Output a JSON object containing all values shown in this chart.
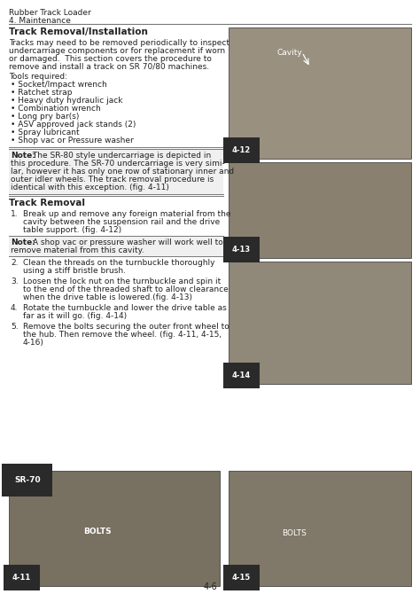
{
  "page_bg": "#ffffff",
  "header_line1": "Rubber Track Loader",
  "header_line2": "4. Maintenance",
  "section_title": "Track Removal/Installation",
  "intro_text": "Tracks may need to be removed periodically to inspect\nundercarriage components or for replacement if worn\nor damaged.  This section covers the procedure to\nremove and install a track on SR 70/80 machines.",
  "tools_header": "Tools required:",
  "tools_list": [
    "• Socket/Impact wrench",
    "• Ratchet strap",
    "• Heavy duty hydraulic jack",
    "• Combination wrench",
    "• Long pry bar(s)",
    "• ASV approved jack stands (2)",
    "• Spray lubricant",
    "• Shop vac or Pressure washer"
  ],
  "note1_bold": "Note:",
  "note1_text": " The SR-80 style undercarriage is depicted in\nthis procedure. The SR-70 undercarriage is very simi-\nlar, however it has only one row of stationary inner and\nouter idler wheels. The track removal procedure is\nidentical with this exception. (fig. 4-11)",
  "track_removal_title": "Track Removal",
  "step1": "Break up and remove any foreign material from the\ncavity between the suspension rail and the drive\ntable support. (fig. 4-12)",
  "note2_bold": "Note:",
  "note2_text": " A shop vac or pressure washer will work well to\nremove material from this cavity.",
  "steps_2_5": [
    "Clean the threads on the turnbuckle thoroughly\nusing a stiff bristle brush.",
    "Loosen the lock nut on the turnbuckle and spin it\nto the end of the threaded shaft to allow clearance\nwhen the drive table is lowered.(fig. 4-13)",
    "Rotate the turnbuckle and lower the drive table as\nfar as it will go. (fig. 4-14)",
    "Remove the bolts securing the outer front wheel to\nthe hub. Then remove the wheel. (fig. 4-11, 4-15,\n4-16)"
  ],
  "fig12_label": "4-12",
  "fig13_label": "4-13",
  "fig14_label": "4-14",
  "fig15_label": "4-15",
  "fig11_label": "4-11",
  "cavity_label": "Cavity",
  "bolts_label": "BOLTS",
  "sr70_label": "SR-70",
  "page_num": "4-6",
  "text_color": "#222222",
  "img_color_12": "#9a9080",
  "img_color_13": "#8a8070",
  "img_color_14": "#908878",
  "img_color_15": "#807868",
  "img_color_11": "#787060",
  "line_color": "#777777",
  "note_bg": "#f0f0f0",
  "figlabel_bg": "#2a2a2a",
  "figlabel_fg": "#ffffff"
}
